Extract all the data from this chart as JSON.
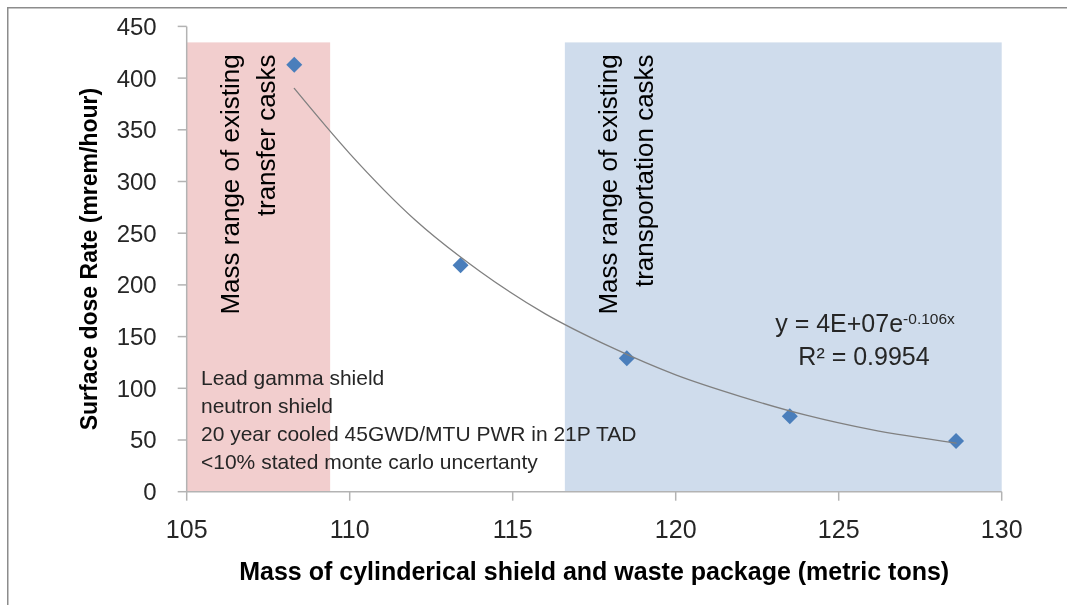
{
  "chart_data": {
    "type": "scatter",
    "xlabel": "Mass of cylinderical shield and waste package (metric tons)",
    "ylabel": "Surface dose Rate (mrem/hour)",
    "xlim": [
      105,
      130
    ],
    "xticks": [
      105,
      110,
      115,
      120,
      125,
      130
    ],
    "ylim": [
      0,
      450
    ],
    "yticks": [
      0,
      50,
      100,
      150,
      200,
      250,
      300,
      350,
      400,
      450
    ],
    "marker": "diamond",
    "series": [
      {
        "color": "#4a7ebb",
        "x": [
          108.3,
          113.4,
          118.5,
          123.5,
          128.6
        ],
        "values": [
          413,
          219,
          129,
          73,
          49
        ]
      },
      {
        "type": "line",
        "color": "#808080",
        "marker": "none",
        "x": [
          108.3,
          110,
          112,
          114,
          116,
          118,
          120,
          122,
          124,
          126,
          128.6
        ],
        "values": [
          390,
          327,
          263,
          213,
          172,
          140,
          113,
          92,
          74,
          60,
          47
        ]
      }
    ],
    "bands": [
      {
        "axis": "x",
        "from": 105,
        "to": 109.4,
        "color": "#f2cece",
        "label": "Mass range of existing\ntransfer casks"
      },
      {
        "axis": "x",
        "from": 116.6,
        "to": 130,
        "color": "#cfdcec",
        "label": "Mass range of existing\ntransportation casks"
      }
    ],
    "annotations": [
      "Lead gamma shield\nneutron shield\n20 year cooled 45GWD/MTU PWR in 21P TAD\n<10% stated monte carlo uncertanty",
      "y = 4E+07e$^{-0.106x}$",
      "R² = 0.9954"
    ]
  }
}
